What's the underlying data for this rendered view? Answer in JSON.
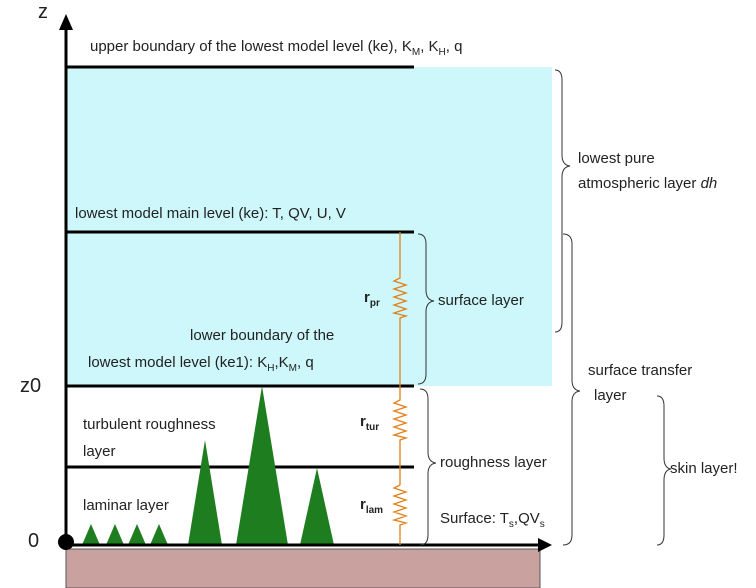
{
  "axis": {
    "z": "z",
    "z0": "z0",
    "zero": "0"
  },
  "levels": {
    "upper": [
      "upper boundary of the lowest model level (ke), K",
      "M",
      ", K",
      "H",
      ", q"
    ],
    "main": "lowest model main level (ke): T, QV, U, V",
    "lower_line1": "lower boundary of the",
    "lower_line2": [
      "lowest model level (ke1): K",
      "H",
      ",K",
      "M",
      ", q"
    ]
  },
  "layers": {
    "turbulent": [
      "turbulent roughness",
      "layer"
    ],
    "laminar": "laminar layer",
    "surface_layer": "surface layer",
    "roughness_layer": "roughness layer",
    "surface": [
      "Surface: T",
      "s",
      ",QV",
      "s"
    ],
    "lowest_pure": [
      "lowest pure",
      "atmospheric layer ",
      "dh"
    ],
    "surface_transfer": [
      "surface transfer",
      "layer"
    ],
    "skin": "skin layer!"
  },
  "resistances": {
    "pr": [
      "r",
      "pr"
    ],
    "tur": [
      "r",
      "tur"
    ],
    "lam": [
      "r",
      "lam"
    ]
  }
}
